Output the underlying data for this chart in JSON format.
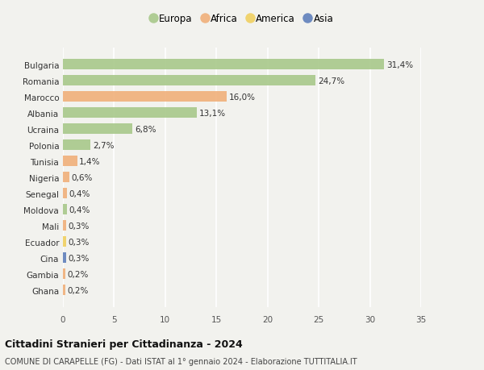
{
  "countries": [
    "Bulgaria",
    "Romania",
    "Marocco",
    "Albania",
    "Ucraina",
    "Polonia",
    "Tunisia",
    "Nigeria",
    "Senegal",
    "Moldova",
    "Mali",
    "Ecuador",
    "Cina",
    "Gambia",
    "Ghana"
  ],
  "values": [
    31.4,
    24.7,
    16.0,
    13.1,
    6.8,
    2.7,
    1.4,
    0.6,
    0.4,
    0.4,
    0.3,
    0.3,
    0.3,
    0.2,
    0.2
  ],
  "labels": [
    "31,4%",
    "24,7%",
    "16,0%",
    "13,1%",
    "6,8%",
    "2,7%",
    "1,4%",
    "0,6%",
    "0,4%",
    "0,4%",
    "0,3%",
    "0,3%",
    "0,3%",
    "0,2%",
    "0,2%"
  ],
  "continent": [
    "Europa",
    "Europa",
    "Africa",
    "Europa",
    "Europa",
    "Europa",
    "Africa",
    "Africa",
    "Africa",
    "Europa",
    "Africa",
    "America",
    "Asia",
    "Africa",
    "Africa"
  ],
  "colors": {
    "Europa": "#a8c88a",
    "Africa": "#f0b07a",
    "America": "#f0d060",
    "Asia": "#6080bb"
  },
  "xlim": [
    0,
    35
  ],
  "xticks": [
    0,
    5,
    10,
    15,
    20,
    25,
    30,
    35
  ],
  "title": "Cittadini Stranieri per Cittadinanza - 2024",
  "subtitle": "COMUNE DI CARAPELLE (FG) - Dati ISTAT al 1° gennaio 2024 - Elaborazione TUTTITALIA.IT",
  "background_color": "#f2f2ee",
  "grid_color": "#ffffff",
  "bar_height": 0.65,
  "label_fontsize": 7.5,
  "tick_fontsize": 7.5,
  "country_fontsize": 7.5,
  "legend_fontsize": 8.5,
  "title_fontsize": 9,
  "subtitle_fontsize": 7
}
